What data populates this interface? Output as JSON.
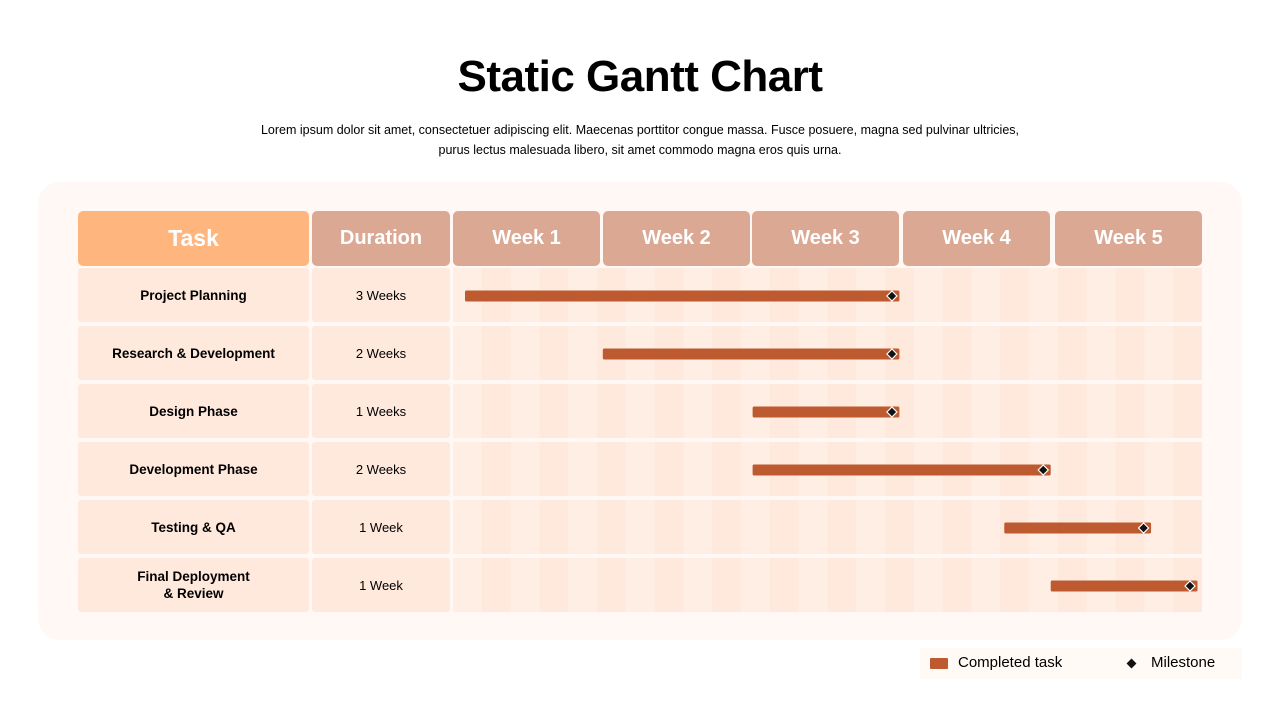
{
  "title": "Static Gantt Chart",
  "subtitle_line1": "Lorem ipsum dolor sit amet, consectetuer adipiscing elit. Maecenas porttitor congue massa. Fusce posuere, magna sed pulvinar ultricies,",
  "subtitle_line2": "purus lectus malesuada libero, sit amet commodo magna eros quis urna.",
  "headers": {
    "task": "Task",
    "duration": "Duration",
    "weeks": [
      "Week 1",
      "Week 2",
      "Week 3",
      "Week 4",
      "Week 5"
    ]
  },
  "legend": {
    "completed": "Completed task",
    "milestone": "Milestone"
  },
  "colors": {
    "bar": "#bd5a30",
    "task_header": "#ffb57e",
    "header": "#dba993",
    "cell": "#ffe9dd",
    "milestone": "#111111"
  },
  "chart_data": {
    "type": "gantt",
    "x_unit": "weeks",
    "xlim": [
      0,
      5
    ],
    "tasks": [
      {
        "name": "Project Planning",
        "duration_label": "3 Weeks",
        "start": 0.08,
        "end": 2.98,
        "milestone": 2.93
      },
      {
        "name": "Research & Development",
        "duration_label": "2 Weeks",
        "start": 1.0,
        "end": 2.98,
        "milestone": 2.93
      },
      {
        "name": "Design Phase",
        "duration_label": "1 Weeks",
        "start": 2.0,
        "end": 2.98,
        "milestone": 2.93
      },
      {
        "name": "Development Phase",
        "duration_label": "2 Weeks",
        "start": 2.0,
        "end": 3.99,
        "milestone": 3.94
      },
      {
        "name": "Testing & QA",
        "duration_label": "1 Week",
        "start": 3.68,
        "end": 4.66,
        "milestone": 4.61
      },
      {
        "name": "Final Deployment\n& Review",
        "duration_label": "1 Week",
        "start": 3.99,
        "end": 4.97,
        "milestone": 4.92
      }
    ]
  }
}
